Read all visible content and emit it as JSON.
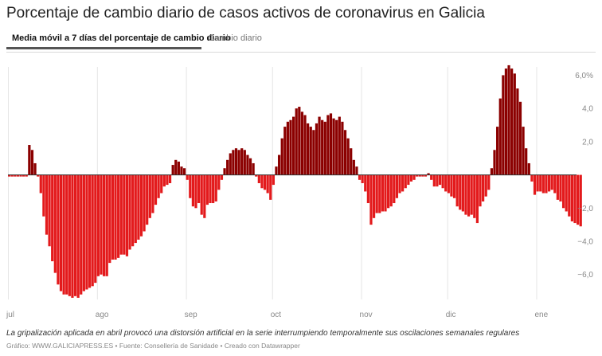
{
  "header": {
    "title": "Porcentaje de cambio diario de casos activos de coronavirus en Galicia"
  },
  "tabs": [
    {
      "label": "Media móvil a 7 días del porcentaje de cambio diario",
      "active": true
    },
    {
      "label": "Cambio diario",
      "active": false
    }
  ],
  "footer": {
    "note": "La gripalización aplicada en abril provocó una distorsión artificial en la serie interrumpiendo temporalmente sus oscilaciones semanales regulares",
    "credit": "Gráfico: WWW.GALICIAPRESS.ES • Fuente: Consellería de Sanidade • Creado con Datawrapper"
  },
  "chart_data": {
    "type": "bar",
    "title": "Media móvil a 7 días del porcentaje de cambio diario",
    "xlabel": "",
    "ylabel": "",
    "ylim": [
      -7.5,
      6.5
    ],
    "y_ticks": [
      {
        "value": 6.0,
        "label": "6,0%"
      },
      {
        "value": 4.0,
        "label": "4,0"
      },
      {
        "value": 2.0,
        "label": "2,0"
      },
      {
        "value": -2.0,
        "label": "−2,0"
      },
      {
        "value": -4.0,
        "label": "−4,0"
      },
      {
        "value": -6.0,
        "label": "−6,0"
      }
    ],
    "x_ticks": [
      {
        "label": "jul",
        "day": 0
      },
      {
        "label": "ago",
        "day": 31
      },
      {
        "label": "sep",
        "day": 62
      },
      {
        "label": "oct",
        "day": 92
      },
      {
        "label": "nov",
        "day": 123
      },
      {
        "label": "dic",
        "day": 153
      },
      {
        "label": "ene",
        "day": 184
      }
    ],
    "start_date": "1 jul",
    "days_total": 198,
    "colors": {
      "positive": "#8b0000",
      "negative": "#e31a1c",
      "zero_line": "#333333",
      "grid": "#e5e5e5"
    },
    "series": [
      {
        "name": "Media móvil a 7 días",
        "values": [
          -0.1,
          -0.1,
          -0.1,
          -0.1,
          -0.1,
          -0.1,
          -0.1,
          1.8,
          1.5,
          0.7,
          -0.1,
          -1.1,
          -2.5,
          -3.6,
          -4.3,
          -5.2,
          -5.9,
          -6.6,
          -7.0,
          -7.2,
          -7.2,
          -7.3,
          -7.4,
          -7.3,
          -7.4,
          -7.2,
          -7.0,
          -6.9,
          -6.8,
          -6.7,
          -6.5,
          -6.1,
          -6.0,
          -6.1,
          -6.1,
          -5.3,
          -5.1,
          -5.1,
          -5.0,
          -4.8,
          -4.8,
          -4.9,
          -4.5,
          -4.3,
          -4.1,
          -3.9,
          -3.7,
          -3.4,
          -3.0,
          -2.6,
          -2.3,
          -1.8,
          -1.4,
          -1.1,
          -0.7,
          -0.6,
          -0.5,
          0.6,
          0.9,
          0.8,
          0.5,
          0.4,
          -0.3,
          -1.4,
          -1.9,
          -2.0,
          -1.7,
          -2.4,
          -2.6,
          -1.8,
          -1.7,
          -1.7,
          -1.6,
          -0.9,
          -0.3,
          0.4,
          0.9,
          1.3,
          1.5,
          1.6,
          1.5,
          1.6,
          1.5,
          1.2,
          1.0,
          0.7,
          -0.1,
          -0.5,
          -0.8,
          -0.9,
          -1.1,
          -1.5,
          -0.6,
          0.5,
          1.2,
          2.2,
          2.9,
          3.2,
          3.3,
          3.5,
          4.0,
          4.1,
          3.8,
          3.6,
          3.1,
          2.9,
          2.7,
          3.1,
          3.5,
          3.3,
          3.2,
          3.6,
          3.7,
          3.4,
          3.3,
          3.5,
          3.2,
          2.7,
          2.2,
          1.6,
          0.9,
          0.5,
          -0.3,
          -0.5,
          -1.0,
          -1.7,
          -3.0,
          -2.6,
          -2.3,
          -2.3,
          -2.2,
          -2.2,
          -2.0,
          -1.9,
          -1.7,
          -1.4,
          -1.1,
          -1.0,
          -0.8,
          -0.6,
          -0.4,
          -0.3,
          -0.1,
          -0.1,
          -0.1,
          -0.1,
          0.1,
          -0.3,
          -0.7,
          -0.7,
          -0.6,
          -0.8,
          -1.0,
          -1.1,
          -1.3,
          -1.4,
          -1.9,
          -2.1,
          -2.2,
          -2.4,
          -2.5,
          -2.4,
          -2.6,
          -2.9,
          -1.9,
          -1.6,
          -1.3,
          -0.9,
          0.4,
          1.5,
          2.9,
          4.6,
          6.0,
          6.4,
          6.6,
          6.4,
          6.1,
          5.2,
          4.4,
          2.9,
          1.6,
          0.7,
          -0.4,
          -1.2,
          -1.0,
          -1.0,
          -1.1,
          -1.1,
          -1.0,
          -0.9,
          -1.1,
          -1.5,
          -1.6,
          -2.0,
          -2.2,
          -2.5,
          -2.8,
          -2.9,
          -3.0,
          -3.1
        ]
      }
    ]
  }
}
